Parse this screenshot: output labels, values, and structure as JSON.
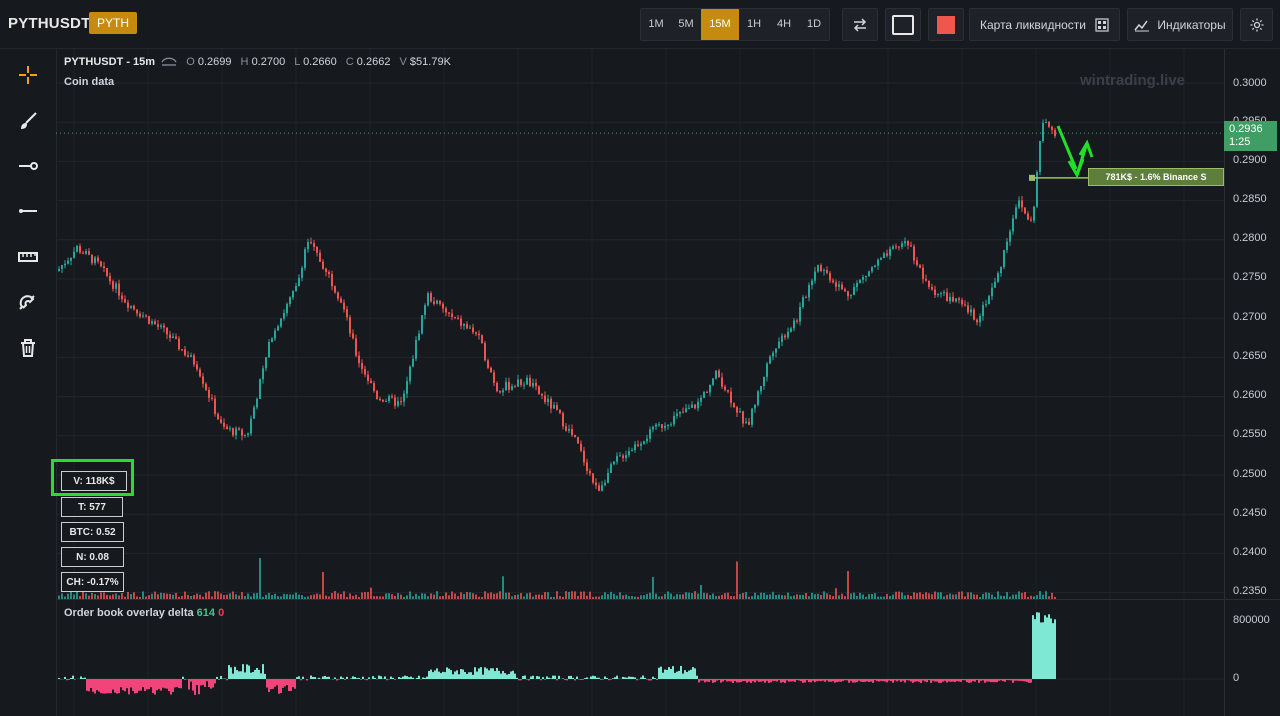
{
  "header": {
    "symbol": "PYTHUSDT",
    "badge": "PYTH",
    "timeframes": [
      "1M",
      "5M",
      "15M",
      "1H",
      "4H",
      "1D"
    ],
    "active_timeframe": "15M",
    "liquidity_map_label": "Карта ликвидности",
    "indicators_label": "Индикаторы"
  },
  "legend": {
    "title": "PYTHUSDT - 15m",
    "open_label": "O",
    "open": "0.2699",
    "high_label": "H",
    "high": "0.2700",
    "low_label": "L",
    "low": "0.2660",
    "close_label": "C",
    "close": "0.2662",
    "volume_label": "V",
    "volume": "$51.79K",
    "subtitle": "Coin data"
  },
  "watermark": "wintrading.live",
  "price_scale": [
    "0.3000",
    "0.2950",
    "0.2900",
    "0.2850",
    "0.2800",
    "0.2750",
    "0.2700",
    "0.2650",
    "0.2600",
    "0.2550",
    "0.2500",
    "0.2450",
    "0.2400",
    "0.2350"
  ],
  "current_price": {
    "price": "0.2936",
    "countdown": "1:25"
  },
  "liquidity_label": "781K$ - 1.6% Binance S",
  "stats": [
    {
      "label": "V: 118K$",
      "highlighted": true
    },
    {
      "label": "T: 577"
    },
    {
      "label": "BTC: 0.52"
    },
    {
      "label": "N: 0.08"
    },
    {
      "label": "CH: -0.17%"
    }
  ],
  "orderbook": {
    "title": "Order book overlay delta",
    "green_value": "614",
    "red_value": "0",
    "scale": [
      "800000",
      "0"
    ]
  },
  "colors": {
    "up": "#26a69a",
    "down": "#ef5350",
    "delta_positive": "#7fe8d4",
    "delta_negative": "#f0447a",
    "accent": "#c58b0f",
    "highlight": "#2fd92f"
  },
  "tools": [
    "crosshair-icon",
    "brush-icon",
    "ray-icon",
    "horizontal-line-icon",
    "ruler-icon",
    "magnet-icon",
    "trash-icon"
  ]
}
